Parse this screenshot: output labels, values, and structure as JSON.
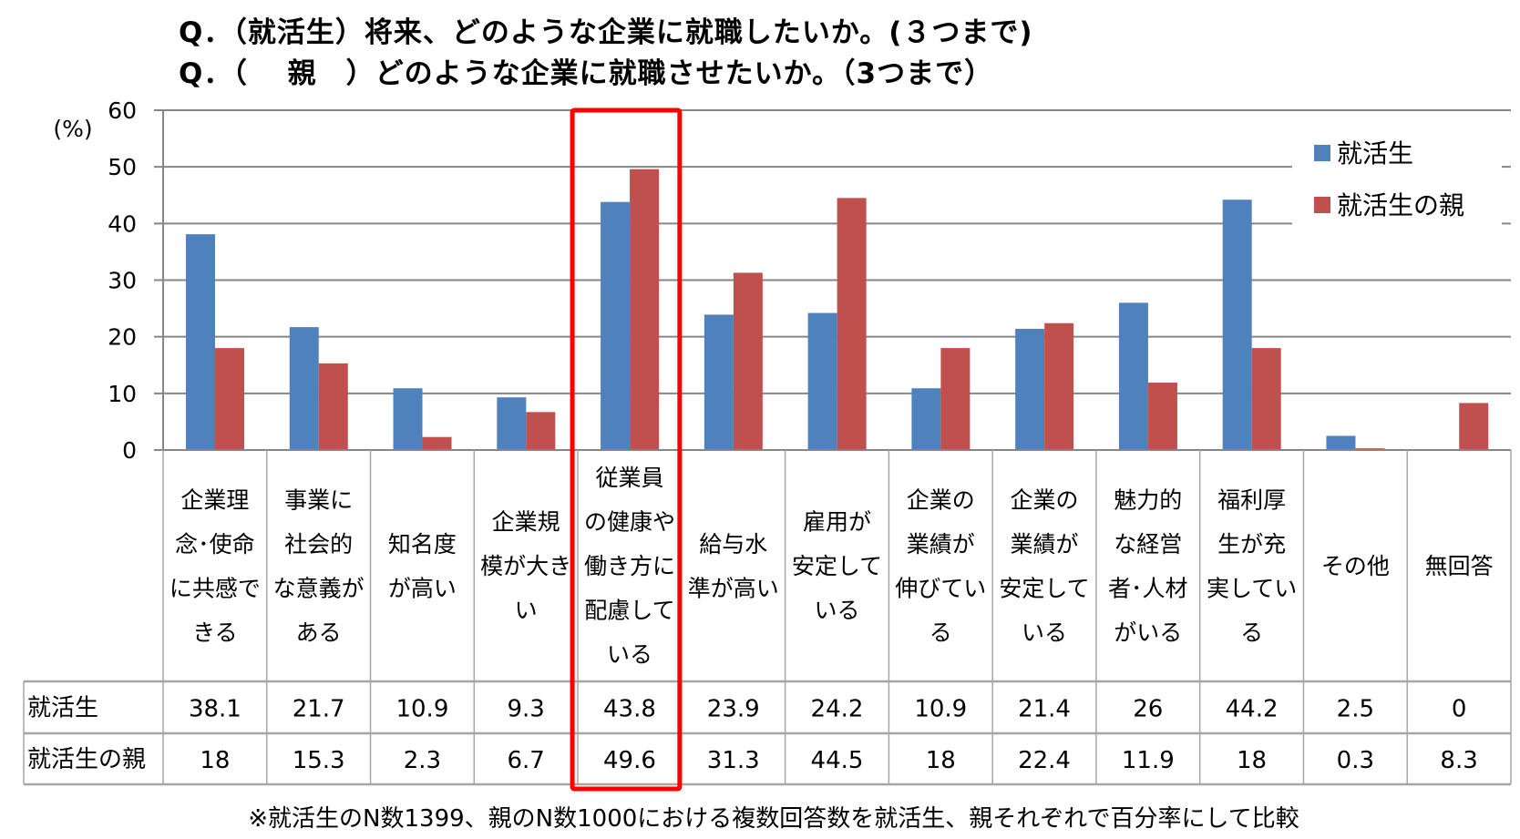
{
  "titles": [
    "Q．（就活生）将来、どのような企業に就職したいか。(３つまで)",
    "Q．（　 親　）どのような企業に就職させたいか。（3つまで）"
  ],
  "footnote": "※就活生のN数1399、親のN数1000における複数回答数を就活生、親それぞれで百分率にして比較",
  "chart_data": {
    "type": "bar",
    "ylabel": "(%)",
    "ylim": [
      0,
      60
    ],
    "yticks": [
      0,
      10,
      20,
      30,
      40,
      50,
      60
    ],
    "grid": true,
    "legend_position": "top-right",
    "categories": [
      [
        "企業理",
        "念･使命",
        "に共感で",
        "きる"
      ],
      [
        "事業に",
        "社会的",
        "な意義が",
        "ある"
      ],
      [
        "知名度",
        "が高い"
      ],
      [
        "企業規",
        "模が大き",
        "い"
      ],
      [
        "従業員",
        "の健康や",
        "働き方に",
        "配慮して",
        "いる"
      ],
      [
        "給与水",
        "準が高い"
      ],
      [
        "雇用が",
        "安定して",
        "いる"
      ],
      [
        "企業の",
        "業績が",
        "伸びてい",
        "る"
      ],
      [
        "企業の",
        "業績が",
        "安定して",
        "いる"
      ],
      [
        "魅力的",
        "な経営",
        "者･人材",
        "がいる"
      ],
      [
        "福利厚",
        "生が充",
        "実してい",
        "る"
      ],
      [
        "その他"
      ],
      [
        "無回答"
      ]
    ],
    "series": [
      {
        "name": "就活生",
        "color": "#4F81BD",
        "values": [
          38.1,
          21.7,
          10.9,
          9.3,
          43.8,
          23.9,
          24.2,
          10.9,
          21.4,
          26,
          44.2,
          2.5,
          0
        ]
      },
      {
        "name": "就活生の親",
        "color": "#C0504D",
        "values": [
          18,
          15.3,
          2.3,
          6.7,
          49.6,
          31.3,
          44.5,
          18,
          22.4,
          11.9,
          18,
          0.3,
          8.3
        ]
      }
    ],
    "value_labels": [
      [
        "38.1",
        "21.7",
        "10.9",
        "9.3",
        "43.8",
        "23.9",
        "24.2",
        "10.9",
        "21.4",
        "26",
        "44.2",
        "2.5",
        "0"
      ],
      [
        "18",
        "15.3",
        "2.3",
        "6.7",
        "49.6",
        "31.3",
        "44.5",
        "18",
        "22.4",
        "11.9",
        "18",
        "0.3",
        "8.3"
      ]
    ],
    "highlight_index": 4,
    "highlight_color": "#FF0000"
  }
}
